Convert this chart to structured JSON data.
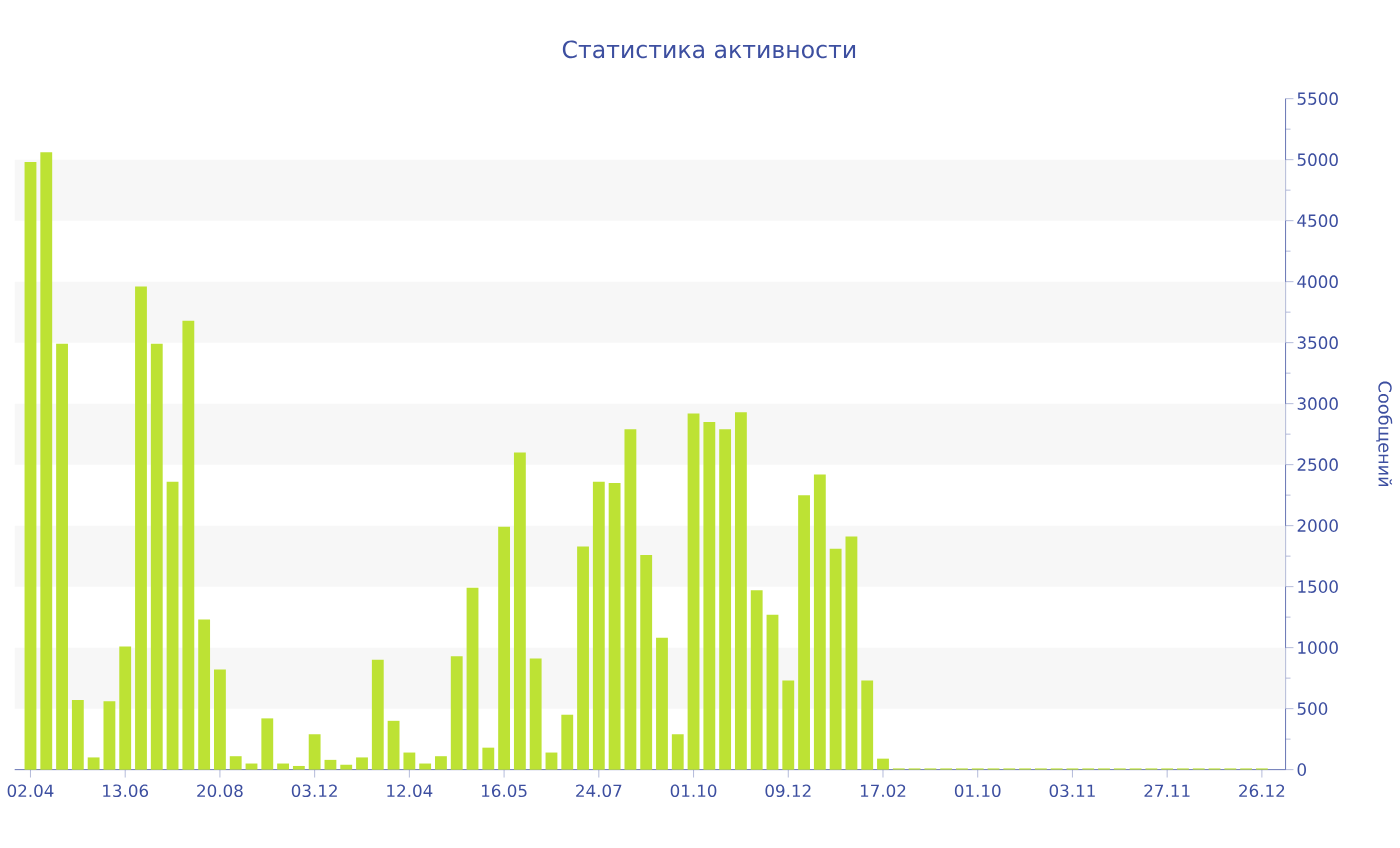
{
  "chart_data": {
    "type": "bar",
    "title": "Статистика активности",
    "ylabel": "Сообщений",
    "categories": [
      "02.04",
      null,
      null,
      null,
      null,
      null,
      "13.06",
      null,
      null,
      null,
      null,
      null,
      "20.08",
      null,
      null,
      null,
      null,
      null,
      "03.12",
      null,
      null,
      null,
      null,
      null,
      "12.04",
      null,
      null,
      null,
      null,
      null,
      "16.05",
      null,
      null,
      null,
      null,
      null,
      "24.07",
      null,
      null,
      null,
      null,
      null,
      "01.10",
      null,
      null,
      null,
      null,
      null,
      "09.12",
      null,
      null,
      null,
      null,
      null,
      "17.02",
      null,
      null,
      null,
      null,
      null,
      "01.10",
      null,
      null,
      null,
      null,
      null,
      "03.11",
      null,
      null,
      null,
      null,
      null,
      "27.11",
      null,
      null,
      null,
      null,
      null,
      "26.12"
    ],
    "values": [
      4980,
      5060,
      3490,
      570,
      100,
      560,
      1010,
      3960,
      3490,
      2360,
      3680,
      1230,
      820,
      110,
      50,
      420,
      50,
      30,
      290,
      80,
      40,
      100,
      900,
      400,
      140,
      50,
      110,
      930,
      1490,
      180,
      1990,
      2600,
      910,
      140,
      450,
      1830,
      2360,
      2350,
      2790,
      1760,
      1080,
      290,
      2920,
      2850,
      2790,
      2930,
      1470,
      1270,
      730,
      2250,
      2420,
      1810,
      1910,
      730,
      90,
      10,
      10,
      10,
      10,
      10,
      10,
      10,
      10,
      10,
      10,
      10,
      10,
      10,
      10,
      10,
      10,
      10,
      10,
      10,
      10,
      10,
      10,
      10,
      10
    ],
    "color": "#bde234",
    "ylim": [
      0,
      5500
    ],
    "yticks": [
      0,
      500,
      1000,
      1500,
      2000,
      2500,
      3000,
      3500,
      4000,
      4500,
      5000,
      5500
    ],
    "bands": [
      {
        "axis": "y",
        "from": 500,
        "to": 1000,
        "color": "#f7f7f7"
      },
      {
        "axis": "y",
        "from": 1500,
        "to": 2000,
        "color": "#f7f7f7"
      },
      {
        "axis": "y",
        "from": 2500,
        "to": 3000,
        "color": "#f7f7f7"
      },
      {
        "axis": "y",
        "from": 3500,
        "to": 4000,
        "color": "#f7f7f7"
      },
      {
        "axis": "y",
        "from": 4500,
        "to": 5000,
        "color": "#f7f7f7"
      }
    ]
  }
}
